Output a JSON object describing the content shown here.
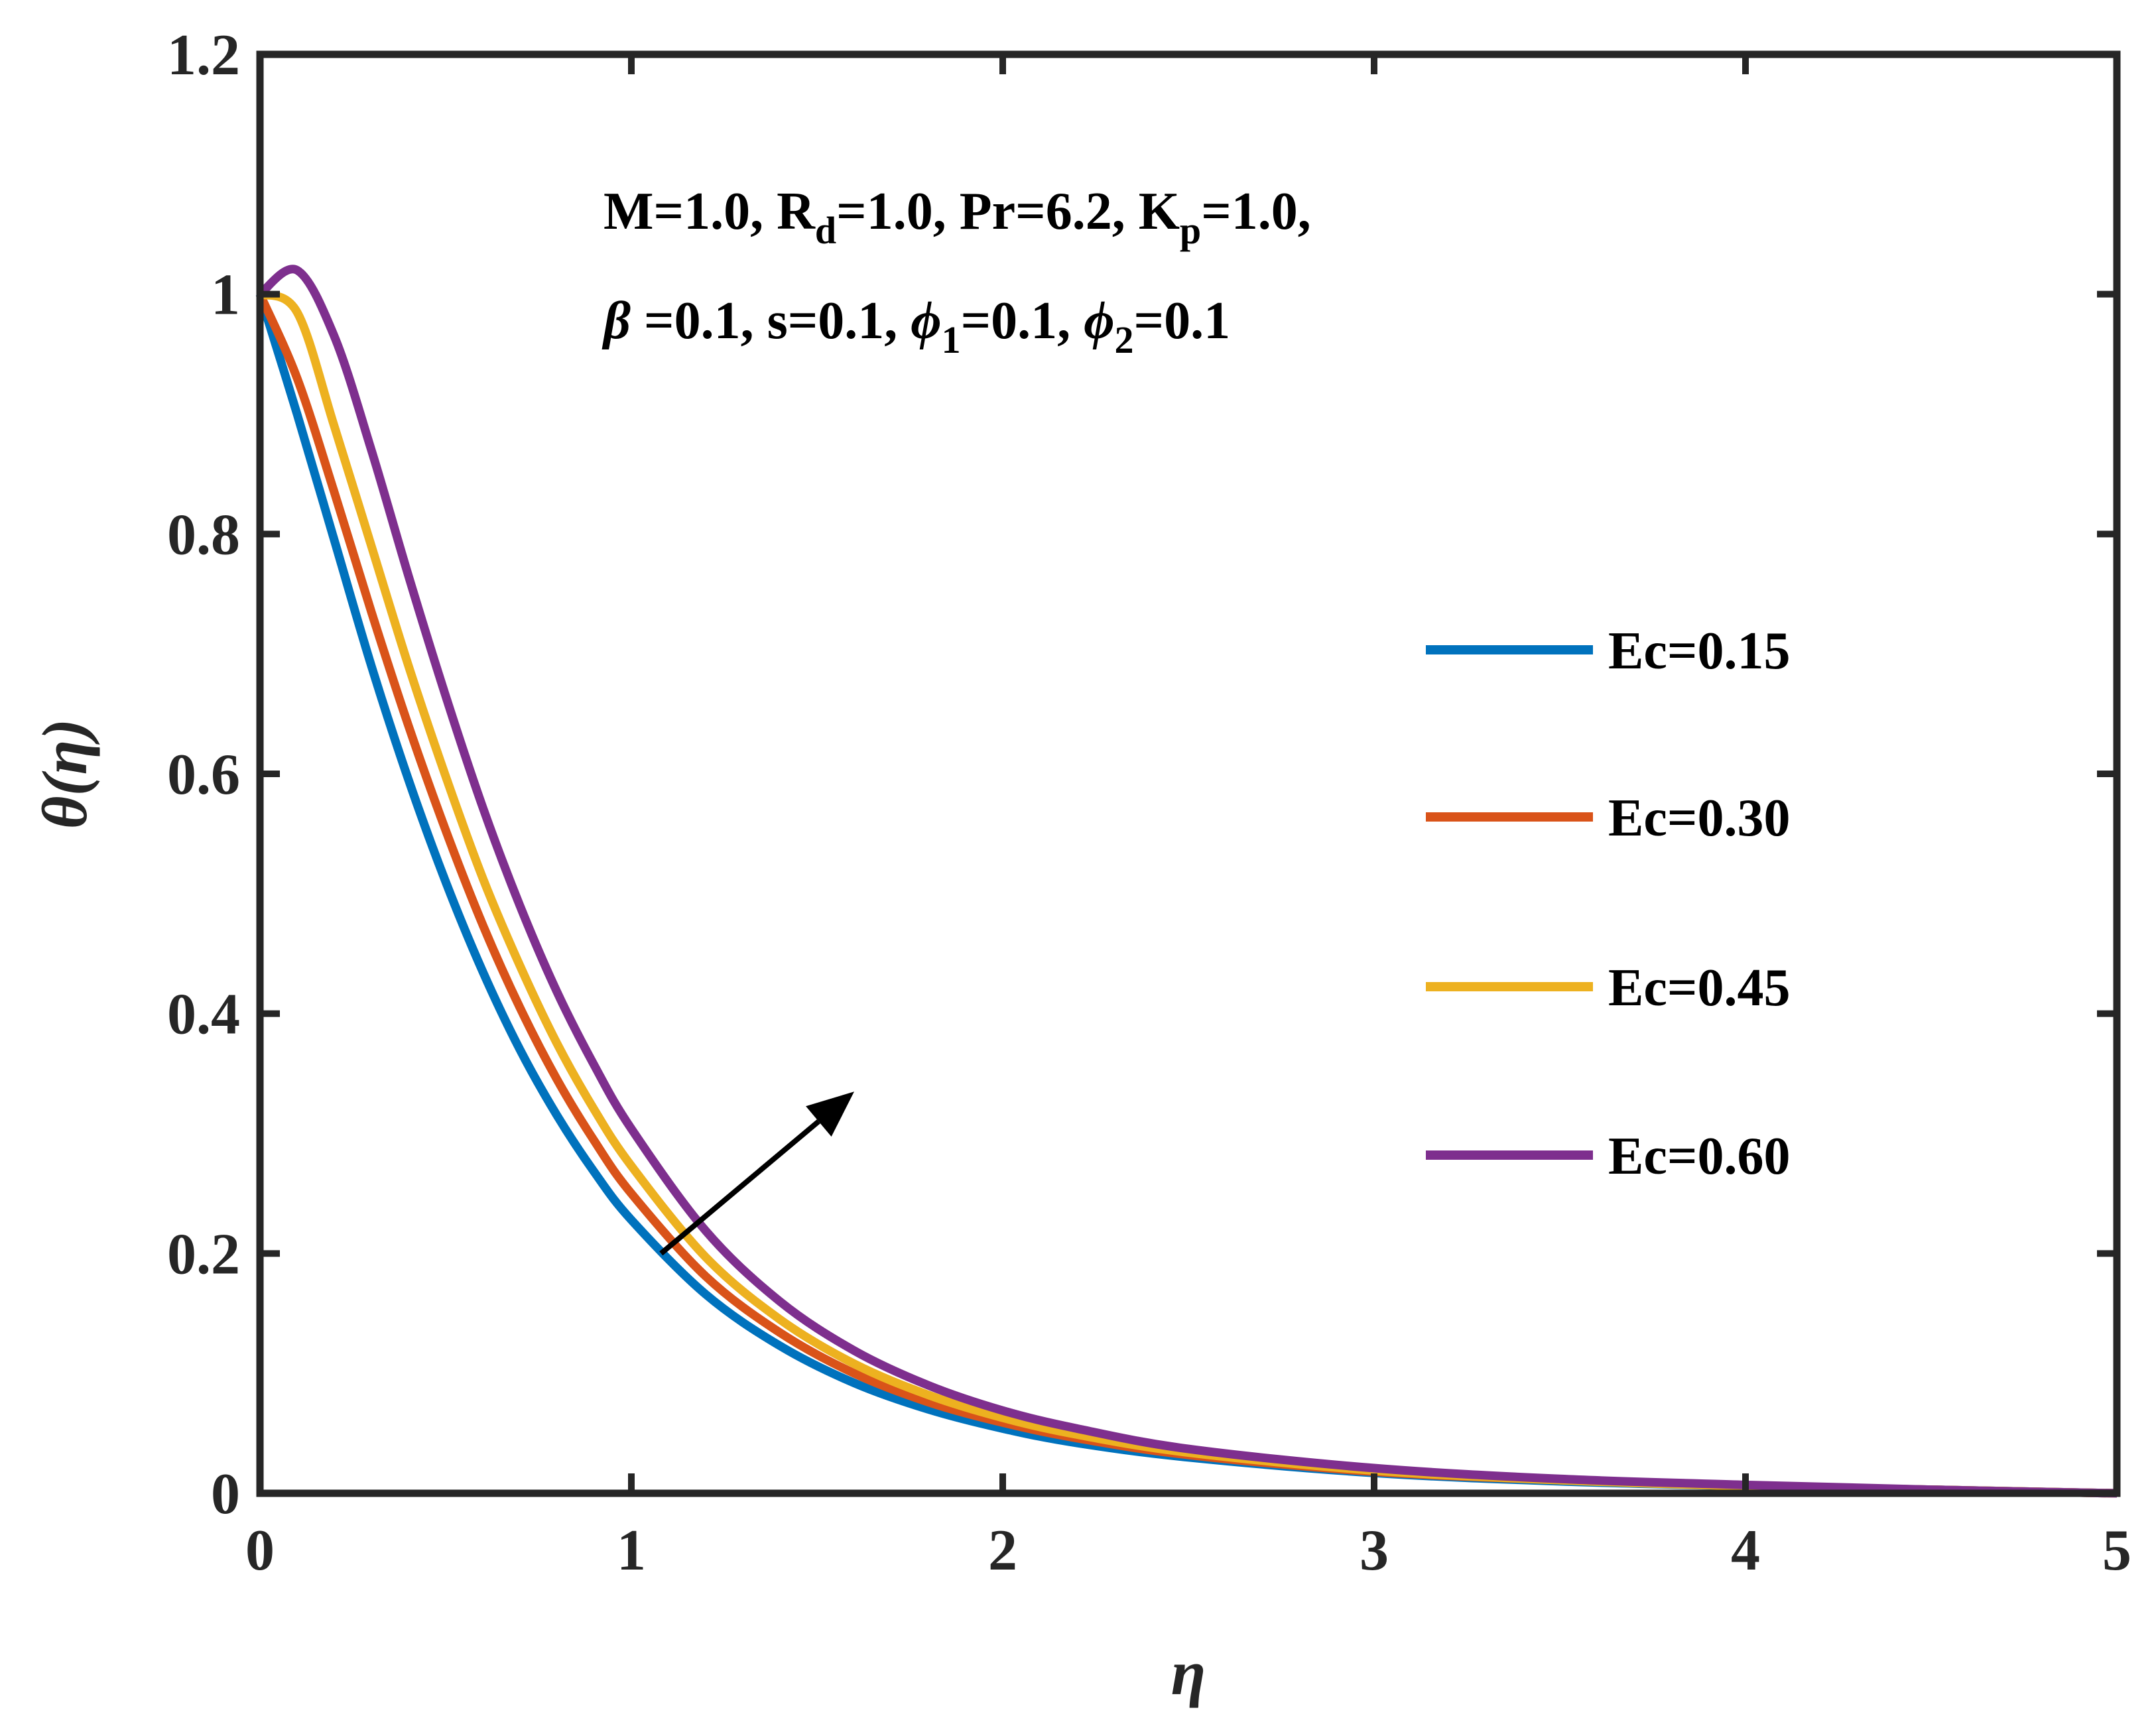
{
  "chart_data": {
    "type": "line",
    "xlabel": "η",
    "ylabel": "θ(η)",
    "xlim": [
      0,
      5
    ],
    "ylim": [
      0,
      1.2
    ],
    "xticks": [
      "0",
      "1",
      "2",
      "3",
      "4",
      "5"
    ],
    "yticks": [
      "0",
      "0.2",
      "0.4",
      "0.6",
      "0.8",
      "1",
      "1.2"
    ],
    "grid": false,
    "legend_position": "right",
    "annotation": {
      "line1": [
        {
          "t": "M=1.0, R"
        },
        {
          "t": "d",
          "sub": true
        },
        {
          "t": "=1.0, Pr=6.2, K"
        },
        {
          "t": "p",
          "sub": true
        },
        {
          "t": "=1.0,"
        }
      ],
      "line2": [
        {
          "t": "β",
          "sym": true
        },
        {
          "t": " =0.1, s=0.1, "
        },
        {
          "t": "ϕ",
          "sym": true
        },
        {
          "t": "1",
          "sub": true
        },
        {
          "t": "=0.1, "
        },
        {
          "t": "ϕ",
          "sym": true
        },
        {
          "t": "2",
          "sub": true
        },
        {
          "t": "=0.1"
        }
      ]
    },
    "arrow": {
      "from": [
        1.08,
        0.2
      ],
      "to": [
        1.6,
        0.335
      ],
      "meaning": "increasing Ec"
    },
    "x": [
      0,
      0.1,
      0.2,
      0.3,
      0.4,
      0.5,
      0.6,
      0.7,
      0.8,
      0.9,
      1.0,
      1.2,
      1.4,
      1.6,
      1.8,
      2.0,
      2.2,
      2.5,
      3.0,
      3.5,
      4.0,
      4.5,
      5.0
    ],
    "series": [
      {
        "name": "Ec=0.15",
        "color": "#0072BD",
        "values": [
          1.0,
          0.9,
          0.795,
          0.69,
          0.595,
          0.51,
          0.435,
          0.37,
          0.315,
          0.268,
          0.228,
          0.166,
          0.123,
          0.092,
          0.07,
          0.054,
          0.042,
          0.03,
          0.017,
          0.01,
          0.006,
          0.003,
          0.0
        ]
      },
      {
        "name": "Ec=0.30",
        "color": "#D95319",
        "values": [
          1.0,
          0.93,
          0.835,
          0.735,
          0.64,
          0.553,
          0.474,
          0.405,
          0.345,
          0.294,
          0.25,
          0.181,
          0.134,
          0.1,
          0.076,
          0.059,
          0.046,
          0.032,
          0.018,
          0.011,
          0.006,
          0.003,
          0.0
        ]
      },
      {
        "name": "Ec=0.45",
        "color": "#EDB120",
        "values": [
          1.0,
          0.985,
          0.89,
          0.79,
          0.69,
          0.598,
          0.513,
          0.44,
          0.375,
          0.32,
          0.273,
          0.197,
          0.145,
          0.108,
          0.082,
          0.063,
          0.049,
          0.034,
          0.019,
          0.011,
          0.006,
          0.003,
          0.0
        ]
      },
      {
        "name": "Ec=0.60",
        "color": "#7E2F8E",
        "values": [
          1.0,
          1.02,
          0.965,
          0.87,
          0.765,
          0.665,
          0.572,
          0.49,
          0.418,
          0.357,
          0.304,
          0.219,
          0.16,
          0.119,
          0.09,
          0.069,
          0.054,
          0.037,
          0.021,
          0.012,
          0.007,
          0.003,
          0.0
        ]
      }
    ]
  }
}
